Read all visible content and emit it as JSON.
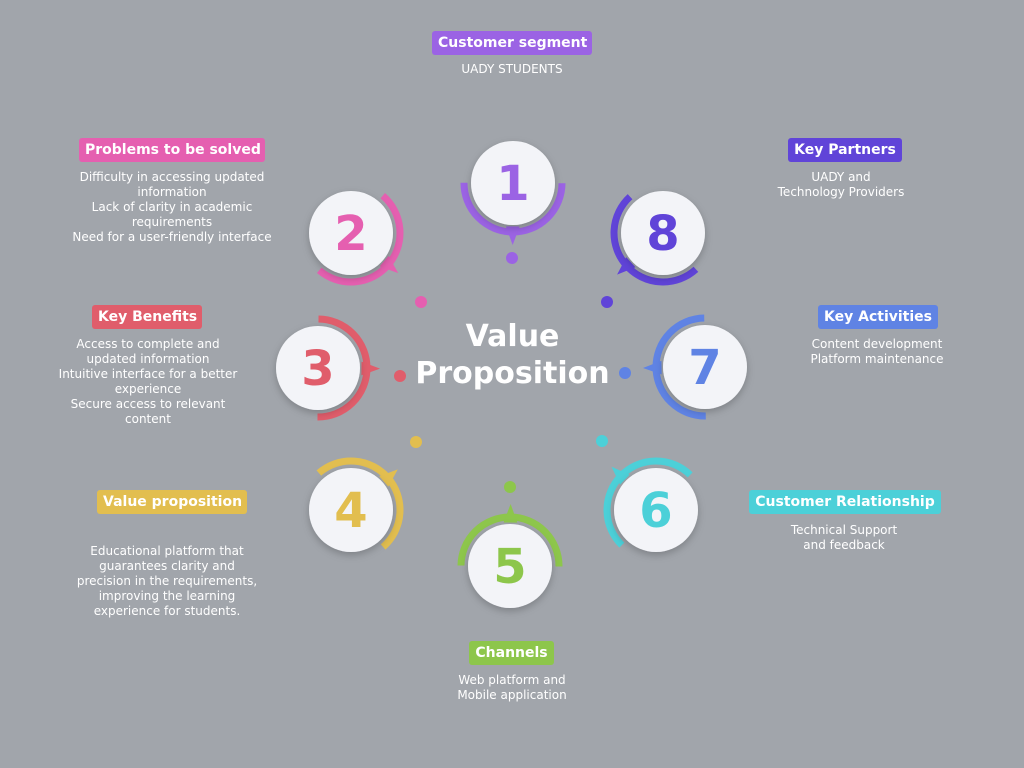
{
  "center": {
    "line1": "Value",
    "line2": "Proposition"
  },
  "segments": [
    {
      "number": "1",
      "label": "Customer segment",
      "color": "#9b63e4",
      "lines": [
        "UADY STUDENTS"
      ]
    },
    {
      "number": "2",
      "label": "Problems to be solved",
      "color": "#e55fb0",
      "lines": [
        "Difficulty in accessing updated",
        "information",
        "Lack of clarity in academic",
        "requirements",
        "Need for a user-friendly interface"
      ]
    },
    {
      "number": "3",
      "label": "Key Benefits",
      "color": "#e05d6b",
      "lines": [
        "Access to complete and",
        "updated information",
        "Intuitive interface for a better",
        "experience",
        "Secure access to relevant",
        "content"
      ]
    },
    {
      "number": "4",
      "label": "Value proposition",
      "color": "#e2be4f",
      "lines": [
        "Educational platform that",
        "guarantees clarity and",
        "precision in the requirements,",
        "improving the learning",
        "experience for students."
      ]
    },
    {
      "number": "5",
      "label": "Channels",
      "color": "#8dc64b",
      "lines": [
        "Web platform and",
        "Mobile application"
      ]
    },
    {
      "number": "6",
      "label": "Customer Relationship",
      "color": "#4cd0d8",
      "lines": [
        "Technical Support",
        "and feedback"
      ]
    },
    {
      "number": "7",
      "label": "Key Activities",
      "color": "#5f83e4",
      "lines": [
        "Content development",
        "Platform maintenance"
      ]
    },
    {
      "number": "8",
      "label": "Key Partners",
      "color": "#6044d8",
      "lines": [
        "UADY and",
        "Technology Providers"
      ]
    }
  ]
}
